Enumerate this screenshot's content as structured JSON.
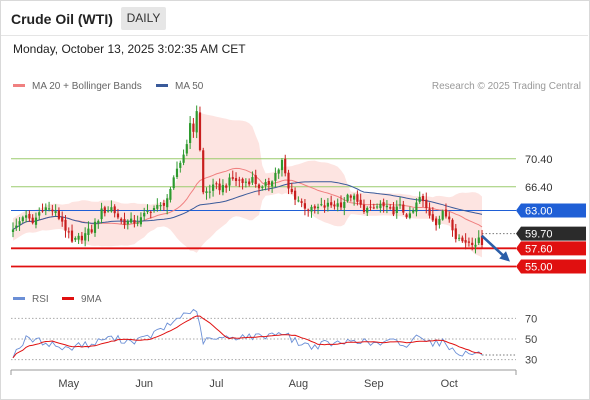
{
  "header": {
    "title": "Crude Oil (WTI)",
    "timeframe": "DAILY",
    "datetime": "Monday, October 13, 2025 3:02:35 AM CET"
  },
  "legend": {
    "ma20_label": "MA 20 + Bollinger Bands",
    "ma50_label": "MA 50",
    "rsi_label": "RSI",
    "rsi_ma_label": "9MA",
    "credit": "Research © 2025 Trading Central"
  },
  "colors": {
    "ma20": "#f08080",
    "ma50": "#3a5a9a",
    "bollinger_fill": "#fde4e1",
    "candle_up": "#2e9a2e",
    "candle_down": "#c81e1e",
    "resistance": "#9ccb6e",
    "pivot": "#1f5fd6",
    "support": "#e01010",
    "last": "#2b2b2b",
    "rsi": "#6b8fd6",
    "rsi_ma": "#e01010",
    "arrow": "#2b5ea8"
  },
  "chart_data": [
    {
      "type": "candlestick",
      "title": "Crude Oil (WTI)",
      "timeframe": "DAILY",
      "x_labels": [
        "May",
        "Jun",
        "Jul",
        "Aug",
        "Sep",
        "Oct"
      ],
      "x_label_positions": [
        17,
        40,
        62,
        87,
        110,
        133
      ],
      "ylim": [
        53.5,
        78.8
      ],
      "bars": 144,
      "levels": [
        {
          "label": "70.40",
          "value": 70.4,
          "kind": "resistance"
        },
        {
          "label": "66.40",
          "value": 66.4,
          "kind": "resistance"
        },
        {
          "label": "63.00",
          "value": 63.0,
          "kind": "pivot"
        },
        {
          "label": "59.70",
          "value": 59.7,
          "kind": "last"
        },
        {
          "label": "57.60",
          "value": 57.6,
          "kind": "support"
        },
        {
          "label": "55.00",
          "value": 55.0,
          "kind": "support"
        }
      ],
      "anchors": [
        [
          0,
          60.0
        ],
        [
          3,
          62.3
        ],
        [
          6,
          61.2
        ],
        [
          9,
          63.5
        ],
        [
          12,
          63.0
        ],
        [
          15,
          61.5
        ],
        [
          18,
          58.3
        ],
        [
          21,
          59.3
        ],
        [
          24,
          60.2
        ],
        [
          27,
          62.8
        ],
        [
          30,
          63.4
        ],
        [
          33,
          61.5
        ],
        [
          36,
          61.3
        ],
        [
          39,
          61.7
        ],
        [
          42,
          63.3
        ],
        [
          45,
          63.5
        ],
        [
          48,
          65.5
        ],
        [
          50,
          69.0
        ],
        [
          52,
          71.0
        ],
        [
          53,
          73.0
        ],
        [
          54,
          75.0
        ],
        [
          55,
          74.5
        ],
        [
          56,
          77.4
        ],
        [
          57,
          71.5
        ],
        [
          58,
          65.5
        ],
        [
          61,
          66.2
        ],
        [
          64,
          66.4
        ],
        [
          67,
          67.5
        ],
        [
          70,
          67.0
        ],
        [
          73,
          67.5
        ],
        [
          76,
          66.0
        ],
        [
          78,
          67.0
        ],
        [
          81,
          69.0
        ],
        [
          82,
          70.0
        ],
        [
          84,
          66.0
        ],
        [
          85,
          65.5
        ],
        [
          88,
          64.0
        ],
        [
          91,
          63.0
        ],
        [
          94,
          63.5
        ],
        [
          97,
          63.8
        ],
        [
          100,
          64.0
        ],
        [
          103,
          65.2
        ],
        [
          106,
          63.5
        ],
        [
          109,
          63.0
        ],
        [
          112,
          63.8
        ],
        [
          115,
          62.8
        ],
        [
          118,
          63.4
        ],
        [
          121,
          62.0
        ],
        [
          124,
          64.8
        ],
        [
          127,
          62.5
        ],
        [
          129,
          61.4
        ],
        [
          131,
          62.5
        ],
        [
          133,
          62.0
        ],
        [
          135,
          59.5
        ],
        [
          137,
          58.6
        ]
      ]
    },
    {
      "type": "line",
      "title": "RSI",
      "series": [
        {
          "name": "RSI"
        },
        {
          "name": "9MA"
        }
      ],
      "ylim": [
        20,
        80
      ],
      "y_ticks": [
        30,
        50,
        70
      ],
      "anchors": [
        [
          0,
          35
        ],
        [
          4,
          50
        ],
        [
          8,
          48
        ],
        [
          12,
          45
        ],
        [
          16,
          40
        ],
        [
          20,
          45
        ],
        [
          24,
          44
        ],
        [
          28,
          51
        ],
        [
          32,
          50
        ],
        [
          36,
          48
        ],
        [
          40,
          50
        ],
        [
          44,
          57
        ],
        [
          48,
          64
        ],
        [
          51,
          72
        ],
        [
          54,
          77
        ],
        [
          56,
          74
        ],
        [
          58,
          48
        ],
        [
          62,
          50
        ],
        [
          66,
          51
        ],
        [
          70,
          53
        ],
        [
          74,
          52
        ],
        [
          78,
          54
        ],
        [
          82,
          57
        ],
        [
          85,
          50
        ],
        [
          88,
          45
        ],
        [
          92,
          43
        ],
        [
          96,
          46
        ],
        [
          100,
          45
        ],
        [
          104,
          50
        ],
        [
          108,
          46
        ],
        [
          112,
          45
        ],
        [
          116,
          48
        ],
        [
          120,
          43
        ],
        [
          124,
          55
        ],
        [
          128,
          46
        ],
        [
          131,
          47
        ],
        [
          134,
          40
        ],
        [
          137,
          36
        ]
      ]
    }
  ]
}
